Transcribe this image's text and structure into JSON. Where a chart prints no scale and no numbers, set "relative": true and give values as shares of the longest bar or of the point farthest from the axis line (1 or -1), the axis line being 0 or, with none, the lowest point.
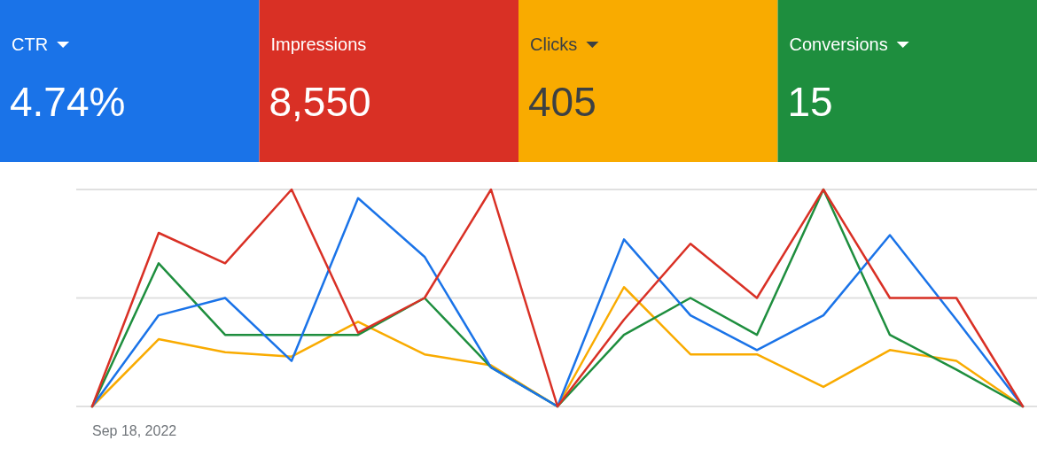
{
  "chart_data": [
    {
      "type": "other",
      "title": "CTR",
      "subtitle": "4.74%",
      "color": "#1a73e8"
    },
    {
      "type": "other",
      "title": "Impressions",
      "subtitle": "8,550",
      "color": "#d93025"
    },
    {
      "type": "other",
      "title": "Clicks",
      "subtitle": "405",
      "color": "#f9ab00"
    },
    {
      "type": "other",
      "title": "Conversions",
      "subtitle": "15",
      "color": "#1e8e3e"
    },
    {
      "type": "line",
      "relative": true,
      "ref_lines": [
        {
          "axis": "y",
          "value": 0.5,
          "color": "#e0e0e0"
        },
        {
          "axis": "y",
          "value": 1,
          "color": "#e0e0e0"
        }
      ],
      "categories": [
        null,
        null,
        null,
        null,
        null,
        null,
        null,
        null,
        null,
        null,
        null,
        null,
        null,
        null,
        null
      ],
      "annotations": [
        "Sep 18, 2022"
      ],
      "series": [
        {
          "color": "#f9ab00",
          "values": [
            0,
            0.31,
            0.25,
            0.23,
            0.39,
            0.24,
            0.19,
            0,
            0.55,
            0.24,
            0.24,
            0.09,
            0.26,
            0.21,
            0
          ]
        },
        {
          "color": "#1e8e3e",
          "values": [
            0,
            0.66,
            0.33,
            0.33,
            0.33,
            0.5,
            0.18,
            0,
            0.33,
            0.5,
            0.33,
            1,
            0.33,
            0.17,
            0
          ]
        },
        {
          "color": "#1a73e8",
          "values": [
            0,
            0.42,
            0.5,
            0.21,
            0.96,
            0.69,
            0.18,
            0,
            0.77,
            0.42,
            0.26,
            0.42,
            0.79,
            0.4,
            0
          ]
        },
        {
          "color": "#d93025",
          "values": [
            0,
            0.8,
            0.66,
            1,
            0.34,
            0.5,
            1,
            0,
            0.4,
            0.75,
            0.5,
            1,
            0.5,
            0.5,
            0
          ]
        }
      ]
    }
  ]
}
